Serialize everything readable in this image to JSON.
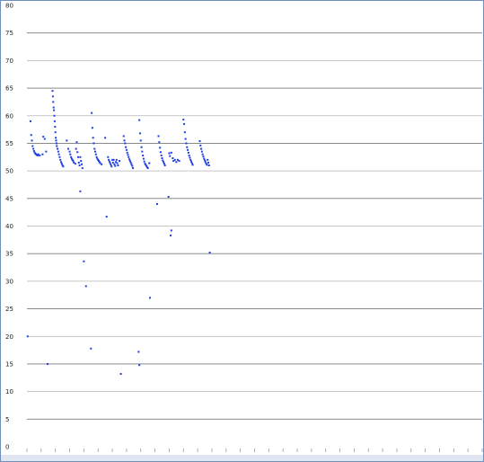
{
  "chart_data": {
    "type": "scatter",
    "title": "",
    "xlabel": "",
    "ylabel": "",
    "ylim": [
      0,
      80
    ],
    "xlim": [
      0,
      64
    ],
    "y_ticks": [
      "0",
      "5",
      "10",
      "15",
      "20",
      "25",
      "30",
      "35",
      "40",
      "45",
      "50",
      "55",
      "60",
      "65",
      "70",
      "75",
      "80"
    ],
    "grid": true,
    "legend": "none",
    "colors": {
      "marker": "#1f3fe0",
      "grid": "#b5b5b5",
      "axis_text": "#222222",
      "frame": "#6f8fbf",
      "strip": "#dfe6f1"
    },
    "series": [
      {
        "values": [
          [
            0.1,
            20
          ],
          [
            0.5,
            59
          ],
          [
            0.6,
            56.5
          ],
          [
            0.7,
            55.5
          ],
          [
            0.8,
            54.5
          ],
          [
            0.9,
            54
          ],
          [
            1.0,
            53.6
          ],
          [
            1.1,
            53.3
          ],
          [
            1.2,
            53.1
          ],
          [
            1.3,
            53
          ],
          [
            1.4,
            52.9
          ],
          [
            1.5,
            52.8
          ],
          [
            1.6,
            53
          ],
          [
            1.8,
            52.8
          ],
          [
            2.2,
            53
          ],
          [
            2.3,
            56.2
          ],
          [
            2.5,
            55.8
          ],
          [
            2.7,
            53.5
          ],
          [
            2.9,
            15
          ],
          [
            3.6,
            64.5
          ],
          [
            3.65,
            63.5
          ],
          [
            3.7,
            62.5
          ],
          [
            3.75,
            61.5
          ],
          [
            3.8,
            61
          ],
          [
            3.85,
            60
          ],
          [
            3.9,
            59
          ],
          [
            3.95,
            58
          ],
          [
            4.0,
            57
          ],
          [
            4.05,
            56
          ],
          [
            4.1,
            55.5
          ],
          [
            4.15,
            55
          ],
          [
            4.2,
            54.5
          ],
          [
            4.3,
            54
          ],
          [
            4.4,
            53.5
          ],
          [
            4.5,
            53
          ],
          [
            4.6,
            52.5
          ],
          [
            4.7,
            52
          ],
          [
            4.8,
            51.6
          ],
          [
            4.9,
            51.3
          ],
          [
            5.0,
            51
          ],
          [
            5.1,
            50.8
          ],
          [
            5.6,
            55.5
          ],
          [
            5.8,
            54
          ],
          [
            6.0,
            53.5
          ],
          [
            6.1,
            53
          ],
          [
            6.2,
            52.5
          ],
          [
            6.3,
            52.2
          ],
          [
            6.4,
            52
          ],
          [
            6.5,
            51.8
          ],
          [
            6.6,
            51.5
          ],
          [
            6.8,
            51.3
          ],
          [
            6.9,
            54
          ],
          [
            7.0,
            55.2
          ],
          [
            7.1,
            53.4
          ],
          [
            7.2,
            52.5
          ],
          [
            7.3,
            51.5
          ],
          [
            7.4,
            51
          ],
          [
            7.5,
            52.5
          ],
          [
            7.6,
            51.8
          ],
          [
            7.7,
            51.2
          ],
          [
            7.8,
            50.5
          ],
          [
            7.5,
            46.3
          ],
          [
            8.0,
            33.6
          ],
          [
            8.3,
            29.1
          ],
          [
            9.1,
            60.5
          ],
          [
            9.2,
            57.8
          ],
          [
            9.3,
            56
          ],
          [
            9.4,
            55
          ],
          [
            9.5,
            54
          ],
          [
            9.6,
            53.5
          ],
          [
            9.7,
            53
          ],
          [
            9.8,
            52.5
          ],
          [
            9.9,
            52.2
          ],
          [
            10.0,
            52
          ],
          [
            10.1,
            51.8
          ],
          [
            10.2,
            51.6
          ],
          [
            10.3,
            51.4
          ],
          [
            10.5,
            51.2
          ],
          [
            9.0,
            17.8
          ],
          [
            11.0,
            56
          ],
          [
            11.2,
            41.7
          ],
          [
            11.4,
            52.5
          ],
          [
            11.5,
            52
          ],
          [
            11.6,
            51.7
          ],
          [
            11.7,
            51.4
          ],
          [
            11.8,
            51.1
          ],
          [
            11.9,
            50.8
          ],
          [
            12.0,
            52
          ],
          [
            12.1,
            51.5
          ],
          [
            12.2,
            52
          ],
          [
            12.3,
            51.2
          ],
          [
            12.4,
            50.9
          ],
          [
            12.5,
            51.6
          ],
          [
            12.6,
            52
          ],
          [
            12.7,
            51.4
          ],
          [
            12.8,
            51
          ],
          [
            13.0,
            51.8
          ],
          [
            13.2,
            13.2
          ],
          [
            13.6,
            56.3
          ],
          [
            13.7,
            55.5
          ],
          [
            13.8,
            55
          ],
          [
            13.9,
            54.3
          ],
          [
            14.0,
            53.8
          ],
          [
            14.1,
            53.3
          ],
          [
            14.2,
            52.9
          ],
          [
            14.3,
            52.5
          ],
          [
            14.4,
            52.1
          ],
          [
            14.5,
            51.8
          ],
          [
            14.6,
            51.5
          ],
          [
            14.7,
            51.2
          ],
          [
            14.8,
            50.9
          ],
          [
            14.9,
            50.5
          ],
          [
            15.8,
            59.2
          ],
          [
            15.9,
            56.8
          ],
          [
            16.0,
            55.5
          ],
          [
            16.1,
            54.3
          ],
          [
            16.2,
            53.5
          ],
          [
            16.3,
            52.8
          ],
          [
            16.4,
            52.2
          ],
          [
            16.5,
            51.7
          ],
          [
            16.6,
            51.3
          ],
          [
            16.7,
            51.1
          ],
          [
            16.8,
            50.9
          ],
          [
            16.9,
            50.7
          ],
          [
            17.0,
            50.5
          ],
          [
            17.2,
            51.4
          ],
          [
            17.3,
            27
          ],
          [
            15.7,
            17.2
          ],
          [
            15.8,
            14.8
          ],
          [
            18.5,
            56.3
          ],
          [
            18.6,
            55.2
          ],
          [
            18.7,
            54.2
          ],
          [
            18.8,
            53.4
          ],
          [
            18.9,
            52.8
          ],
          [
            19.0,
            52.3
          ],
          [
            19.1,
            51.9
          ],
          [
            19.2,
            51.6
          ],
          [
            19.3,
            51.3
          ],
          [
            19.4,
            51
          ],
          [
            18.3,
            44
          ],
          [
            20.0,
            53.2
          ],
          [
            20.1,
            52.7
          ],
          [
            20.3,
            53.3
          ],
          [
            20.5,
            52.3
          ],
          [
            20.6,
            51.8
          ],
          [
            20.8,
            52
          ],
          [
            21.0,
            51.6
          ],
          [
            21.2,
            52
          ],
          [
            21.4,
            51.8
          ],
          [
            19.9,
            45.3
          ],
          [
            20.3,
            39.2
          ],
          [
            20.2,
            38.3
          ],
          [
            22.0,
            59.3
          ],
          [
            22.1,
            58.5
          ],
          [
            22.2,
            57
          ],
          [
            22.3,
            55.8
          ],
          [
            22.4,
            55
          ],
          [
            22.5,
            54.3
          ],
          [
            22.6,
            53.8
          ],
          [
            22.7,
            53.3
          ],
          [
            22.8,
            52.8
          ],
          [
            22.9,
            52.4
          ],
          [
            23.0,
            52
          ],
          [
            23.1,
            51.7
          ],
          [
            23.2,
            51.4
          ],
          [
            23.3,
            51.1
          ],
          [
            24.3,
            55.4
          ],
          [
            24.4,
            54.6
          ],
          [
            24.5,
            54
          ],
          [
            24.6,
            53.5
          ],
          [
            24.7,
            53
          ],
          [
            24.8,
            52.6
          ],
          [
            24.9,
            52.2
          ],
          [
            25.0,
            51.9
          ],
          [
            25.1,
            51.6
          ],
          [
            25.2,
            51.3
          ],
          [
            25.3,
            51.1
          ],
          [
            25.4,
            52
          ],
          [
            25.5,
            51.5
          ],
          [
            25.6,
            51
          ],
          [
            25.7,
            35.2
          ]
        ]
      }
    ]
  }
}
